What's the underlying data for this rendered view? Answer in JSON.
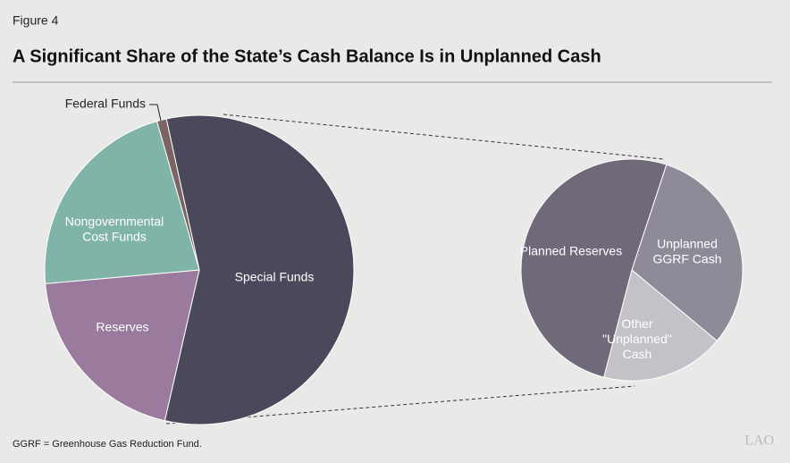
{
  "figure_label": "Figure 4",
  "title": "A Significant Share of the State’s Cash Balance Is in Unplanned Cash",
  "note": "GGRF = Greenhouse Gas Reduction Fund.",
  "logo": "LAO",
  "chart_data": [
    {
      "type": "pie",
      "categories": [
        "Special Funds",
        "Reserves",
        "Nongovernmental\nCost Funds",
        "Federal Funds"
      ],
      "values": [
        57,
        20,
        22,
        1
      ],
      "colors": [
        "#4a495c",
        "#9a7a9d",
        "#80b4a8",
        "#7b6462"
      ]
    },
    {
      "type": "pie",
      "categories": [
        "Unplanned\nGGRF Cash",
        "Other\n\"Unplanned\"\nCash",
        "Planned Reserves"
      ],
      "values": [
        31,
        18,
        51
      ],
      "colors": [
        "#8f8a98",
        "#c5c1c9",
        "#6f6979"
      ]
    }
  ]
}
